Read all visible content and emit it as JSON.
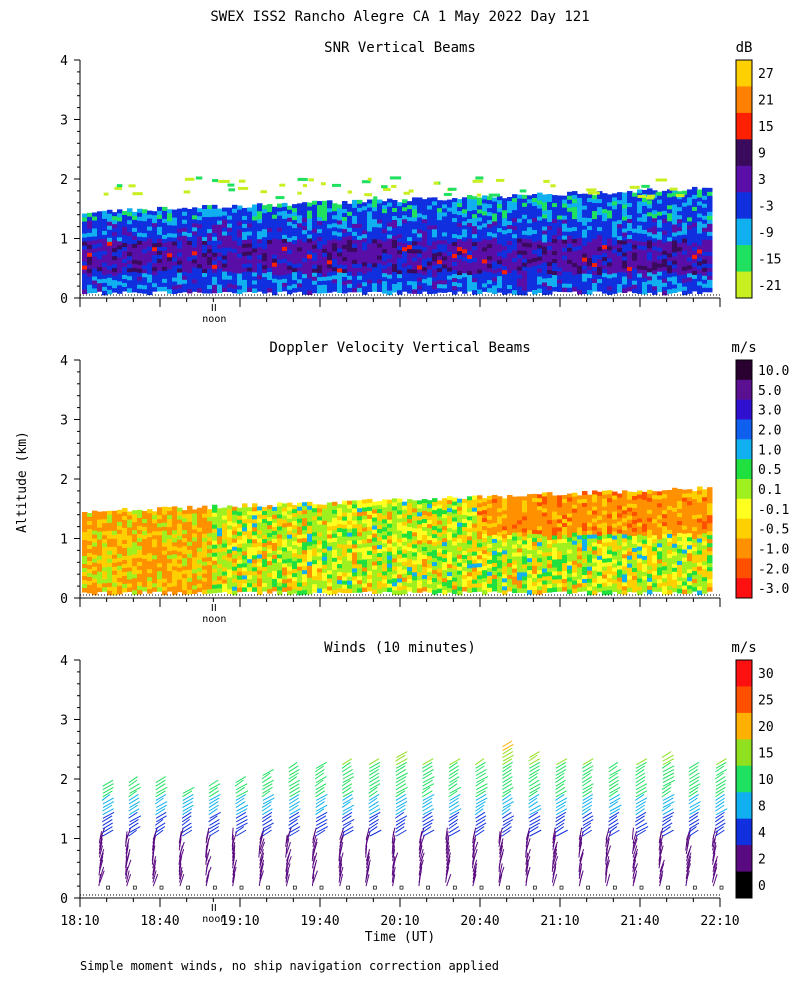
{
  "title": "SWEX ISS2 Rancho Alegre CA   1 May 2022 Day 121",
  "ylabel": "Altitude (km)",
  "xlabel": "Time (UT)",
  "footnote": "Simple moment winds, no ship navigation correction applied",
  "noon_label": "noon",
  "chart_data": [
    {
      "type": "heatmap",
      "title": "SNR Vertical Beams",
      "unit": "dB",
      "ylabel": "Altitude (km)",
      "ylim": [
        0,
        4
      ],
      "yticks": [
        "0",
        "1",
        "2",
        "3",
        "4"
      ],
      "x_time_range": [
        "18:10",
        "22:10"
      ],
      "colorbar": {
        "labels": [
          "27",
          "21",
          "15",
          "9",
          "3",
          "-3",
          "-9",
          "-15",
          "-21"
        ],
        "colors": [
          "#ffd000",
          "#ff8000",
          "#ff2000",
          "#3a0a5c",
          "#5a0ea8",
          "#1030e0",
          "#10b0f0",
          "#20e060",
          "#c8f020"
        ]
      },
      "signal_top_km_start": 1.45,
      "signal_top_km_end": 1.85
    },
    {
      "type": "heatmap",
      "title": "Doppler Velocity Vertical Beams",
      "unit": "m/s",
      "ylabel": "Altitude (km)",
      "ylim": [
        0,
        4
      ],
      "yticks": [
        "0",
        "1",
        "2",
        "3",
        "4"
      ],
      "x_time_range": [
        "18:10",
        "22:10"
      ],
      "colorbar": {
        "labels": [
          "10.0",
          "5.0",
          "3.0",
          "2.0",
          "1.0",
          "0.5",
          "0.1",
          "-0.1",
          "-0.5",
          "-1.0",
          "-2.0",
          "-3.0"
        ],
        "colors": [
          "#2a0030",
          "#5a1090",
          "#3010d0",
          "#1060f0",
          "#10b0f0",
          "#20e040",
          "#a0f020",
          "#ffff20",
          "#ffd000",
          "#ff9000",
          "#ff5000",
          "#ff1010"
        ]
      },
      "signal_top_km_start": 1.45,
      "signal_top_km_end": 1.85
    },
    {
      "type": "wind-barbs",
      "title": "Winds (10 minutes)",
      "unit": "m/s",
      "ylabel": "Altitude (km)",
      "ylim": [
        0,
        4
      ],
      "yticks": [
        "0",
        "1",
        "2",
        "3",
        "4"
      ],
      "xlabel": "Time (UT)",
      "xticks": [
        "18:10",
        "18:40",
        "19:10",
        "19:40",
        "20:10",
        "20:40",
        "21:10",
        "21:40",
        "22:10"
      ],
      "x_minutes_range": [
        0,
        240
      ],
      "profile_minutes": [
        10,
        20,
        30,
        40,
        50,
        60,
        70,
        80,
        90,
        100,
        110,
        120,
        130,
        140,
        150,
        160,
        170,
        180,
        190,
        200,
        210,
        220,
        230,
        240
      ],
      "profile_top_km": [
        1.9,
        2.0,
        2.0,
        1.8,
        1.9,
        2.0,
        2.1,
        2.2,
        2.2,
        2.3,
        2.3,
        2.4,
        2.3,
        2.3,
        2.3,
        2.6,
        2.4,
        2.3,
        2.3,
        2.2,
        2.3,
        2.4,
        2.2,
        2.3
      ],
      "colorbar": {
        "labels": [
          "30",
          "25",
          "20",
          "15",
          "10",
          "8",
          "4",
          "2",
          "0"
        ],
        "colors": [
          "#ff1010",
          "#ff5000",
          "#ffb000",
          "#90e020",
          "#20e060",
          "#10b0f0",
          "#1030e0",
          "#5a0a80",
          "#000000"
        ]
      }
    }
  ]
}
